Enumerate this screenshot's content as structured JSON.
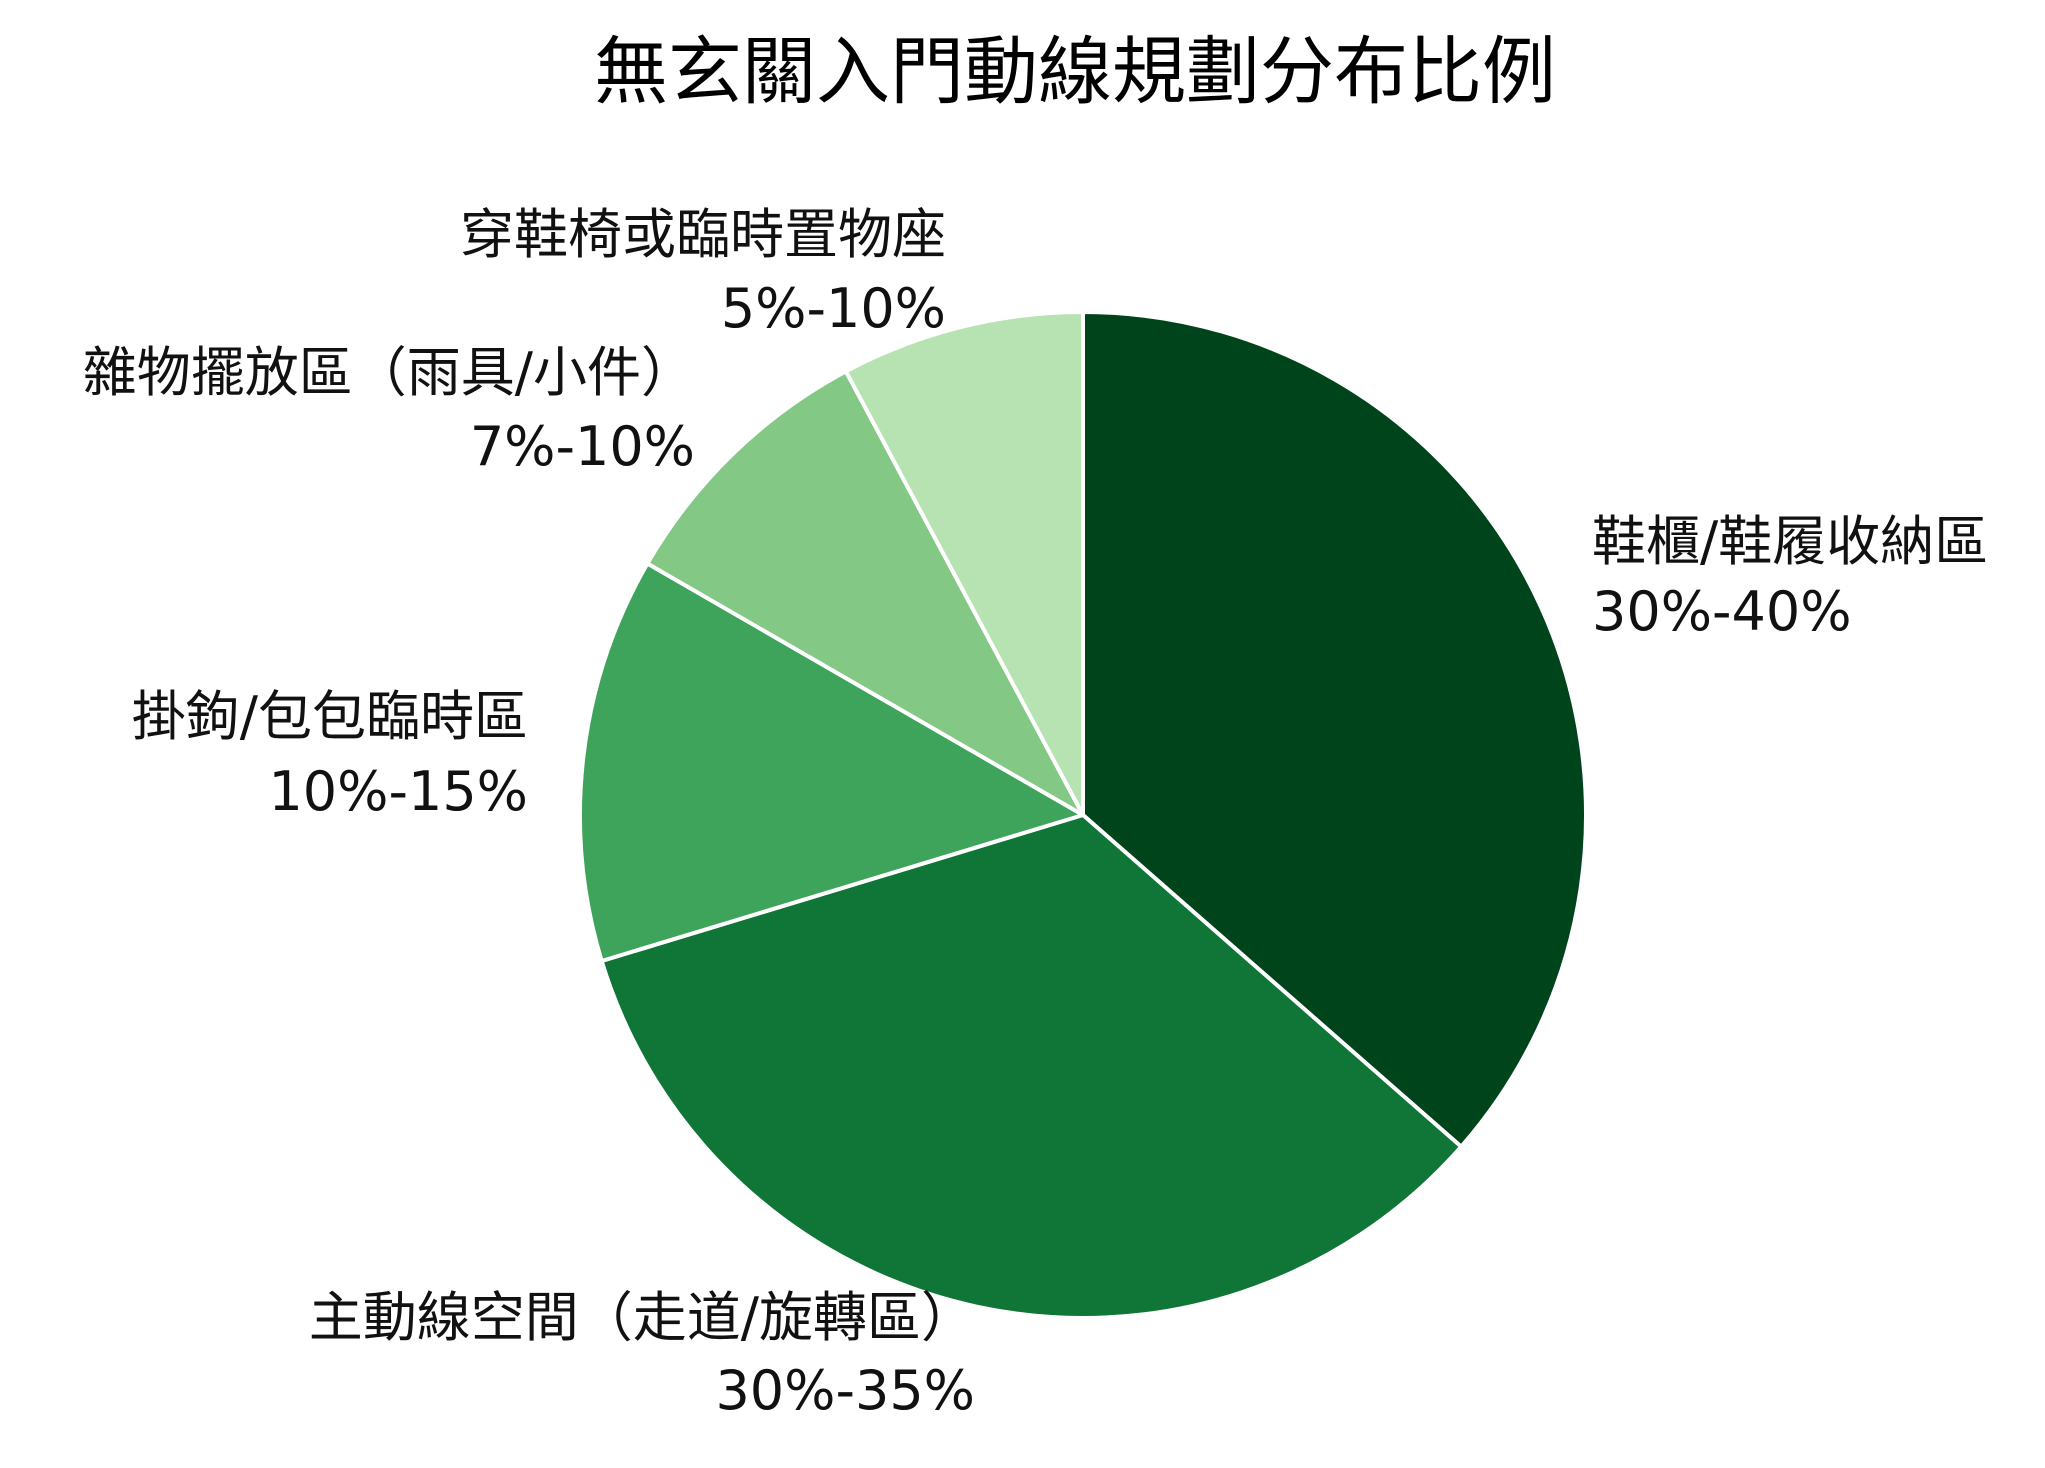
{
  "chart_data": {
    "type": "pie",
    "title": "無玄關入門動線規劃分布比例",
    "start_angle_deg": 90,
    "direction": "clockwise",
    "edge_color": "#ffffff",
    "slices": [
      {
        "key": "shoe",
        "label": "鞋櫃/鞋履收納區",
        "range": "30%-40%",
        "value": 35,
        "color": "#00441b"
      },
      {
        "key": "main",
        "label": "主動線空間（走道/旋轉區）",
        "range": "30%-35%",
        "value": 32.5,
        "color": "#0f7637"
      },
      {
        "key": "hook",
        "label": "掛鉤/包包臨時區",
        "range": "10%-15%",
        "value": 12.5,
        "color": "#3fa45b"
      },
      {
        "key": "misc",
        "label": "雜物擺放區（雨具/小件）",
        "range": "7%-10%",
        "value": 8.5,
        "color": "#83c884"
      },
      {
        "key": "seat",
        "label": "穿鞋椅或臨時置物座",
        "range": "5%-10%",
        "value": 7.5,
        "color": "#b7e2b1"
      }
    ]
  }
}
